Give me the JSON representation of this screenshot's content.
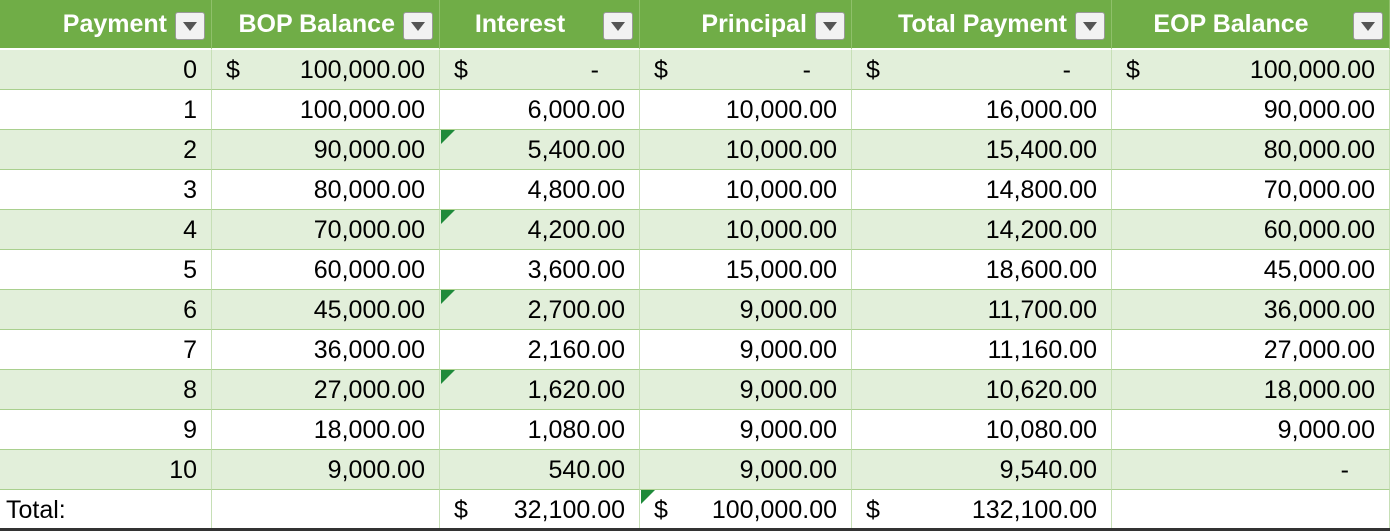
{
  "table": {
    "headers": [
      "Payment",
      "BOP Balance",
      "Interest",
      "Principal",
      "Total Payment",
      "EOP Balance"
    ],
    "rows": [
      [
        "0",
        {
          "sym": "$",
          "text": "100,000.00"
        },
        {
          "sym": "$",
          "text": "-"
        },
        {
          "sym": "$",
          "text": "-"
        },
        {
          "sym": "$",
          "text": "-"
        },
        {
          "sym": "$",
          "text": "100,000.00"
        }
      ],
      [
        "1",
        "100,000.00",
        "6,000.00",
        "10,000.00",
        "16,000.00",
        "90,000.00"
      ],
      [
        "2",
        "90,000.00",
        "5,400.00",
        "10,000.00",
        "15,400.00",
        "80,000.00"
      ],
      [
        "3",
        "80,000.00",
        "4,800.00",
        "10,000.00",
        "14,800.00",
        "70,000.00"
      ],
      [
        "4",
        "70,000.00",
        "4,200.00",
        "10,000.00",
        "14,200.00",
        "60,000.00"
      ],
      [
        "5",
        "60,000.00",
        "3,600.00",
        "15,000.00",
        "18,600.00",
        "45,000.00"
      ],
      [
        "6",
        "45,000.00",
        "2,700.00",
        "9,000.00",
        "11,700.00",
        "36,000.00"
      ],
      [
        "7",
        "36,000.00",
        "2,160.00",
        "9,000.00",
        "11,160.00",
        "27,000.00"
      ],
      [
        "8",
        "27,000.00",
        "1,620.00",
        "9,000.00",
        "10,620.00",
        "18,000.00"
      ],
      [
        "9",
        "18,000.00",
        "1,080.00",
        "9,000.00",
        "10,080.00",
        "9,000.00"
      ],
      [
        "10",
        "9,000.00",
        "540.00",
        "9,000.00",
        "9,540.00",
        "-"
      ]
    ],
    "total": [
      "Total:",
      null,
      {
        "sym": "$",
        "text": "32,100.00"
      },
      {
        "sym": "$",
        "text": "100,000.00"
      },
      {
        "sym": "$",
        "text": "132,100.00"
      },
      null
    ]
  }
}
